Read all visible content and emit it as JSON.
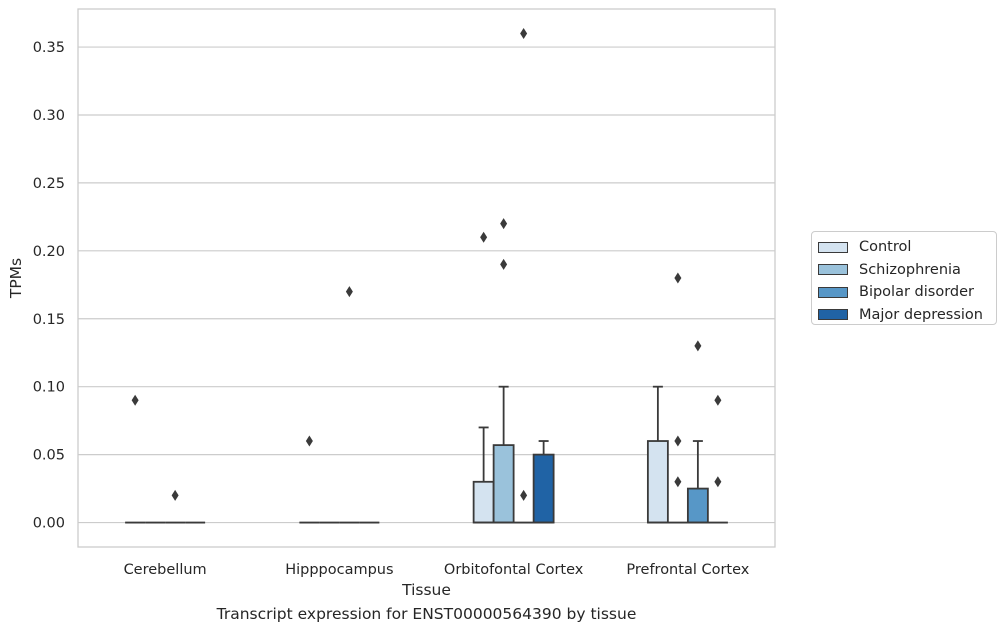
{
  "chart_data": {
    "type": "box",
    "xlabel": "Tissue",
    "ylabel": "TPMs",
    "caption": "Transcript expression for ENST00000564390 by tissue",
    "ylim": [
      -0.018,
      0.378
    ],
    "yticks": [
      0.0,
      0.05,
      0.1,
      0.15,
      0.2,
      0.25,
      0.3,
      0.35
    ],
    "ytick_labels": [
      "0.00",
      "0.05",
      "0.10",
      "0.15",
      "0.20",
      "0.25",
      "0.30",
      "0.35"
    ],
    "grid": "horizontal",
    "legend_position": "right",
    "categories": [
      "Cerebellum",
      "Hipppocampus",
      "Orbitofontal Cortex",
      "Prefrontal Cortex"
    ],
    "series": [
      {
        "name": "Control",
        "color": "#d4e3f0",
        "boxes": [
          {
            "q1": 0,
            "median": 0,
            "q3": 0,
            "whisker_low": 0,
            "whisker_high": 0,
            "outliers": [
              0.09
            ]
          },
          {
            "q1": 0,
            "median": 0,
            "q3": 0,
            "whisker_low": 0,
            "whisker_high": 0,
            "outliers": [
              0.06
            ]
          },
          {
            "q1": 0,
            "median": 0,
            "q3": 0.03,
            "whisker_low": 0,
            "whisker_high": 0.07,
            "outliers": [
              0.21
            ]
          },
          {
            "q1": 0,
            "median": 0,
            "q3": 0.06,
            "whisker_low": 0,
            "whisker_high": 0.1,
            "outliers": []
          }
        ]
      },
      {
        "name": "Schizophrenia",
        "color": "#9ac2db",
        "boxes": [
          {
            "q1": 0,
            "median": 0,
            "q3": 0,
            "whisker_low": 0,
            "whisker_high": 0,
            "outliers": []
          },
          {
            "q1": 0,
            "median": 0,
            "q3": 0,
            "whisker_low": 0,
            "whisker_high": 0,
            "outliers": []
          },
          {
            "q1": 0,
            "median": 0,
            "q3": 0.057,
            "whisker_low": 0,
            "whisker_high": 0.1,
            "outliers": [
              0.22,
              0.19
            ]
          },
          {
            "q1": 0,
            "median": 0,
            "q3": 0,
            "whisker_low": 0,
            "whisker_high": 0,
            "outliers": [
              0.18,
              0.06,
              0.03
            ]
          }
        ]
      },
      {
        "name": "Bipolar disorder",
        "color": "#5797c7",
        "boxes": [
          {
            "q1": 0,
            "median": 0,
            "q3": 0,
            "whisker_low": 0,
            "whisker_high": 0,
            "outliers": [
              0.02
            ]
          },
          {
            "q1": 0,
            "median": 0,
            "q3": 0,
            "whisker_low": 0,
            "whisker_high": 0,
            "outliers": [
              0.17
            ]
          },
          {
            "q1": 0,
            "median": 0,
            "q3": 0,
            "whisker_low": 0,
            "whisker_high": 0,
            "outliers": [
              0.36,
              0.02
            ]
          },
          {
            "q1": 0,
            "median": 0,
            "q3": 0.025,
            "whisker_low": 0,
            "whisker_high": 0.06,
            "outliers": [
              0.13
            ]
          }
        ]
      },
      {
        "name": "Major depression",
        "color": "#2063a5",
        "boxes": [
          {
            "q1": 0,
            "median": 0,
            "q3": 0,
            "whisker_low": 0,
            "whisker_high": 0,
            "outliers": []
          },
          {
            "q1": 0,
            "median": 0,
            "q3": 0,
            "whisker_low": 0,
            "whisker_high": 0,
            "outliers": []
          },
          {
            "q1": 0,
            "median": 0,
            "q3": 0.05,
            "whisker_low": 0,
            "whisker_high": 0.06,
            "outliers": []
          },
          {
            "q1": 0,
            "median": 0,
            "q3": 0,
            "whisker_low": 0,
            "whisker_high": 0,
            "outliers": [
              0.09,
              0.03
            ]
          }
        ]
      }
    ]
  }
}
